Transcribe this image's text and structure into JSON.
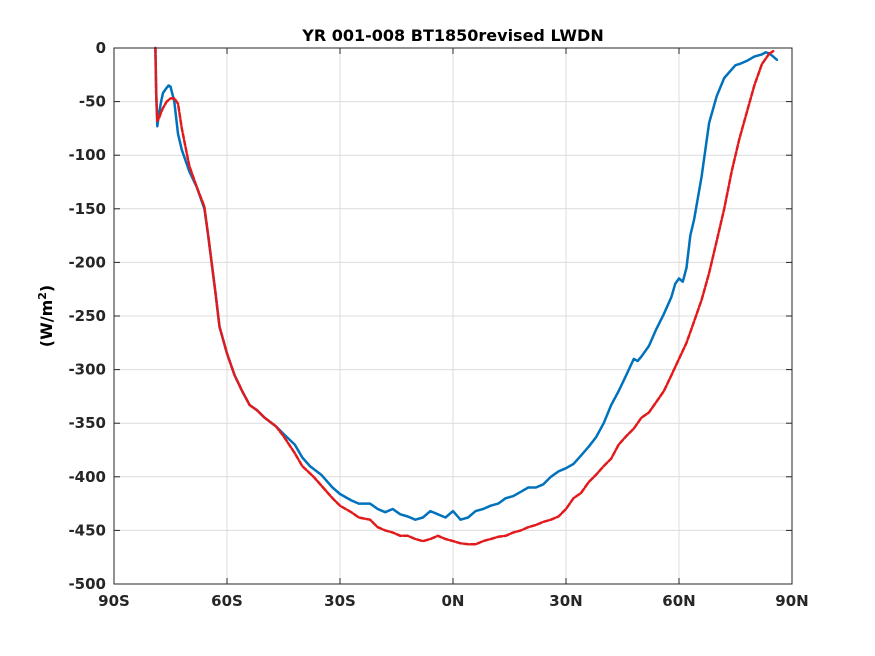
{
  "chart_data": {
    "type": "line",
    "title": "YR 001-008 BT1850revised LWDN",
    "xlabel": "",
    "ylabel_main": "(W/m",
    "ylabel_sup": "2",
    "ylabel_close": ")",
    "xlim": [
      -90,
      90
    ],
    "ylim": [
      -500,
      0
    ],
    "grid": true,
    "x_ticks": [
      {
        "value": -90,
        "label": "90S"
      },
      {
        "value": -60,
        "label": "60S"
      },
      {
        "value": -30,
        "label": "30S"
      },
      {
        "value": 0,
        "label": "0N"
      },
      {
        "value": 30,
        "label": "30N"
      },
      {
        "value": 60,
        "label": "60N"
      },
      {
        "value": 90,
        "label": "90N"
      }
    ],
    "y_ticks": [
      {
        "value": 0,
        "label": "0"
      },
      {
        "value": -50,
        "label": "-50"
      },
      {
        "value": -100,
        "label": "-100"
      },
      {
        "value": -150,
        "label": "-150"
      },
      {
        "value": -200,
        "label": "-200"
      },
      {
        "value": -250,
        "label": "-250"
      },
      {
        "value": -300,
        "label": "-300"
      },
      {
        "value": -350,
        "label": "-350"
      },
      {
        "value": -400,
        "label": "-400"
      },
      {
        "value": -450,
        "label": "-450"
      },
      {
        "value": -500,
        "label": "-500"
      }
    ],
    "series": [
      {
        "color": "#0072BD",
        "style": "solid",
        "x": [
          -79,
          -78.8,
          -78.5,
          -78,
          -77.5,
          -77,
          -76,
          -75.5,
          -75,
          -74,
          -73,
          -72,
          -70,
          -68,
          -66,
          -65,
          -63,
          -62,
          -60,
          -58,
          -56,
          -54,
          -52,
          -50,
          -47,
          -45,
          -42,
          -40,
          -38,
          -35,
          -32,
          -30,
          -27,
          -25,
          -22,
          -20,
          -18,
          -16,
          -14,
          -12,
          -10,
          -8,
          -6,
          -4,
          -2,
          0,
          2,
          4,
          6,
          8,
          10,
          12,
          14,
          16,
          18,
          20,
          22,
          24,
          26,
          28,
          30,
          32,
          34,
          36,
          38,
          40,
          42,
          44,
          46,
          48,
          49,
          50,
          52,
          54,
          56,
          58,
          59,
          60,
          61,
          62,
          63,
          64,
          66,
          68,
          70,
          72,
          74,
          75,
          76,
          78,
          80,
          82,
          83,
          84,
          85,
          86
        ],
        "y": [
          0,
          -40,
          -73,
          -60,
          -50,
          -42,
          -37,
          -35,
          -36,
          -50,
          -80,
          -95,
          -115,
          -130,
          -150,
          -175,
          -230,
          -260,
          -285,
          -305,
          -320,
          -333,
          -338,
          -345,
          -353,
          -360,
          -370,
          -382,
          -390,
          -398,
          -410,
          -416,
          -422,
          -425,
          -425,
          -430,
          -433,
          -430,
          -435,
          -437,
          -440,
          -438,
          -432,
          -435,
          -438,
          -432,
          -440,
          -438,
          -432,
          -430,
          -427,
          -425,
          -420,
          -418,
          -414,
          -410,
          -410,
          -407,
          -400,
          -395,
          -392,
          -388,
          -380,
          -372,
          -363,
          -350,
          -333,
          -320,
          -305,
          -290,
          -292,
          -288,
          -278,
          -262,
          -248,
          -232,
          -220,
          -215,
          -218,
          -205,
          -175,
          -160,
          -120,
          -70,
          -45,
          -28,
          -20,
          -16,
          -15,
          -12,
          -8,
          -6,
          -4,
          -5,
          -8,
          -11
        ]
      },
      {
        "color": "#E31A1C",
        "style": "dashed",
        "x": [
          -79,
          -78.8,
          -78.5,
          -78,
          -77.5,
          -77,
          -76,
          -75,
          -74,
          -73,
          -72,
          -70,
          -68,
          -66,
          -65,
          -63,
          -62,
          -60,
          -58,
          -56,
          -54,
          -52,
          -50,
          -47,
          -45,
          -42,
          -40,
          -37,
          -35,
          -32,
          -30,
          -27,
          -25,
          -22,
          -20,
          -18,
          -16,
          -14,
          -12,
          -10,
          -8,
          -6,
          -4,
          -2,
          0,
          2,
          4,
          6,
          8,
          10,
          12,
          14,
          16,
          18,
          20,
          22,
          24,
          26,
          28,
          30,
          32,
          34,
          36,
          38,
          40,
          42,
          44,
          46,
          48,
          50,
          52,
          54,
          56,
          58,
          60,
          62,
          64,
          66,
          68,
          70,
          72,
          74,
          76,
          78,
          80,
          82,
          84,
          85
        ],
        "y": [
          0,
          -45,
          -68,
          -65,
          -60,
          -56,
          -50,
          -47,
          -47,
          -52,
          -75,
          -110,
          -130,
          -148,
          -175,
          -230,
          -260,
          -285,
          -305,
          -320,
          -333,
          -338,
          -345,
          -353,
          -362,
          -378,
          -390,
          -400,
          -408,
          -420,
          -427,
          -433,
          -438,
          -440,
          -447,
          -450,
          -452,
          -455,
          -455,
          -458,
          -460,
          -458,
          -455,
          -458,
          -460,
          -462,
          -463,
          -463,
          -460,
          -458,
          -456,
          -455,
          -452,
          -450,
          -447,
          -445,
          -442,
          -440,
          -437,
          -430,
          -420,
          -415,
          -405,
          -398,
          -390,
          -383,
          -370,
          -362,
          -355,
          -345,
          -340,
          -330,
          -320,
          -305,
          -290,
          -275,
          -255,
          -235,
          -210,
          -180,
          -150,
          -115,
          -85,
          -60,
          -35,
          -15,
          -5,
          -3
        ]
      }
    ]
  }
}
